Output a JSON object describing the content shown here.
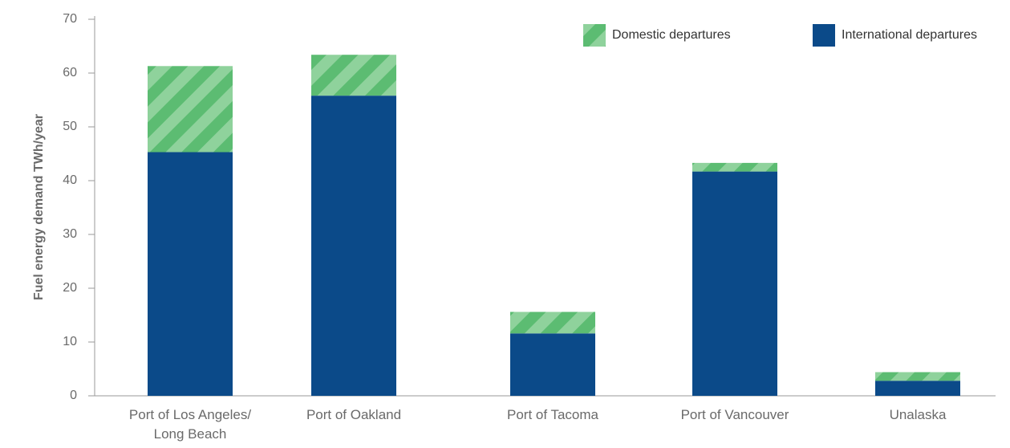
{
  "chart_data": {
    "type": "bar",
    "stacked": true,
    "categories": [
      [
        "Port of Los Angeles/",
        "Long Beach"
      ],
      [
        "Port of Oakland"
      ],
      [
        "Port of Tacoma"
      ],
      [
        "Port of Vancouver"
      ],
      [
        "Unalaska"
      ]
    ],
    "series": [
      {
        "name": "International departures",
        "color": "#0b4a89",
        "pattern": "solid",
        "values": [
          45.3,
          55.8,
          11.6,
          41.7,
          2.8
        ]
      },
      {
        "name": "Domestic departures",
        "color": "#5cbc72",
        "pattern": "diagonal-stripes",
        "values": [
          16.0,
          7.6,
          4.0,
          1.6,
          1.6
        ]
      }
    ],
    "legend_order": [
      "Domestic departures",
      "International departures"
    ],
    "legend_position": "top-right",
    "ylabel": "Fuel energy demand TWh/year",
    "xlabel": "",
    "ylim": [
      0,
      70
    ],
    "yticks": [
      0,
      10,
      20,
      30,
      40,
      50,
      60,
      70
    ],
    "grid": false
  }
}
